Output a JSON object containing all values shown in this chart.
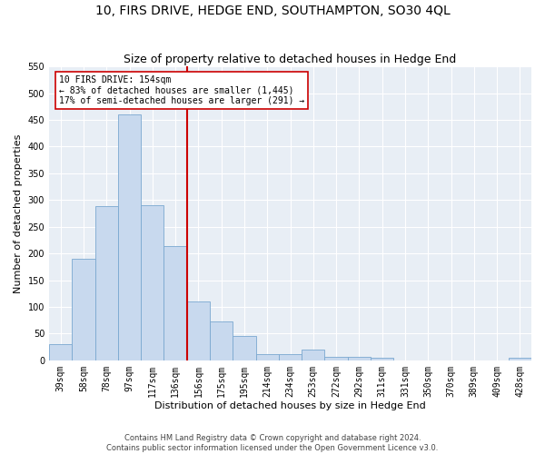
{
  "title": "10, FIRS DRIVE, HEDGE END, SOUTHAMPTON, SO30 4QL",
  "subtitle": "Size of property relative to detached houses in Hedge End",
  "xlabel": "Distribution of detached houses by size in Hedge End",
  "ylabel": "Number of detached properties",
  "categories": [
    "39sqm",
    "58sqm",
    "78sqm",
    "97sqm",
    "117sqm",
    "136sqm",
    "156sqm",
    "175sqm",
    "195sqm",
    "214sqm",
    "234sqm",
    "253sqm",
    "272sqm",
    "292sqm",
    "311sqm",
    "331sqm",
    "350sqm",
    "370sqm",
    "389sqm",
    "409sqm",
    "428sqm"
  ],
  "values": [
    30,
    190,
    288,
    460,
    290,
    213,
    110,
    73,
    46,
    12,
    11,
    20,
    7,
    6,
    5,
    0,
    0,
    0,
    0,
    0,
    4
  ],
  "bar_color": "#c8d9ee",
  "bar_edge_color": "#7aa8d0",
  "vline_bar_index": 6,
  "vline_color": "#cc0000",
  "annotation_text": "10 FIRS DRIVE: 154sqm\n← 83% of detached houses are smaller (1,445)\n17% of semi-detached houses are larger (291) →",
  "annotation_box_facecolor": "#ffffff",
  "annotation_box_edgecolor": "#cc0000",
  "ylim": [
    0,
    550
  ],
  "yticks": [
    0,
    50,
    100,
    150,
    200,
    250,
    300,
    350,
    400,
    450,
    500,
    550
  ],
  "bg_color": "#e8eef5",
  "grid_color": "#ffffff",
  "footer1": "Contains HM Land Registry data © Crown copyright and database right 2024.",
  "footer2": "Contains public sector information licensed under the Open Government Licence v3.0.",
  "title_fontsize": 10,
  "subtitle_fontsize": 9,
  "xlabel_fontsize": 8,
  "ylabel_fontsize": 8,
  "tick_fontsize": 7,
  "annot_fontsize": 7,
  "footer_fontsize": 6
}
